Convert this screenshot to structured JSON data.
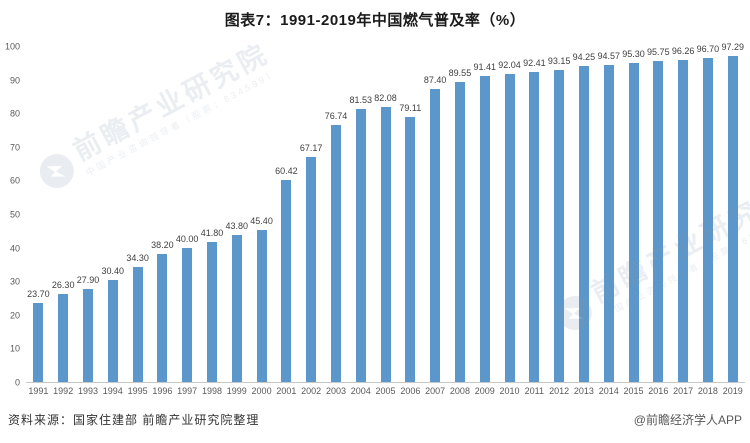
{
  "title": "图表7：1991-2019年中国燃气普及率（%）",
  "chart_data": {
    "type": "bar",
    "title": "图表7：1991-2019年中国燃气普及率（%）",
    "categories": [
      "1991",
      "1992",
      "1993",
      "1994",
      "1995",
      "1996",
      "1997",
      "1998",
      "1999",
      "2000",
      "2001",
      "2002",
      "2003",
      "2004",
      "2005",
      "2006",
      "2007",
      "2008",
      "2009",
      "2010",
      "2011",
      "2012",
      "2013",
      "2014",
      "2015",
      "2016",
      "2017",
      "2018",
      "2019"
    ],
    "values": [
      23.7,
      26.3,
      27.9,
      30.4,
      34.3,
      38.2,
      40.0,
      41.8,
      43.8,
      45.4,
      60.42,
      67.17,
      76.74,
      81.53,
      82.08,
      79.11,
      87.4,
      89.55,
      91.41,
      92.04,
      92.41,
      93.15,
      94.25,
      94.57,
      95.3,
      95.75,
      96.26,
      96.7,
      97.29
    ],
    "value_labels": [
      "23.70",
      "26.30",
      "27.90",
      "30.40",
      "34.30",
      "38.20",
      "40.00",
      "41.80",
      "43.80",
      "45.40",
      "60.42",
      "67.17",
      "76.74",
      "81.53",
      "82.08",
      "79.11",
      "87.40",
      "89.55",
      "91.41",
      "92.04",
      "92.41",
      "93.15",
      "94.25",
      "94.57",
      "95.30",
      "95.75",
      "96.26",
      "96.70",
      "97.29"
    ],
    "xlabel": "",
    "ylabel": "",
    "ylim": [
      0,
      100
    ],
    "yticks": [
      0,
      10,
      20,
      30,
      40,
      50,
      60,
      70,
      80,
      90,
      100
    ],
    "grid": false,
    "legend": "none",
    "bar_color": "#5B97CB"
  },
  "footer": {
    "source": "资料来源：国家住建部 前瞻产业研究院整理",
    "attribution": "@前瞻经济学人APP"
  },
  "watermark": {
    "text": "前瞻产业研究院",
    "subtext": "中国产业咨询领导者（股票：834599）"
  }
}
